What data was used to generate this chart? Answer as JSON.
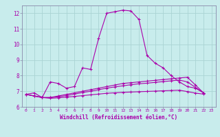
{
  "title": "",
  "xlabel": "Windchill (Refroidissement éolien,°C)",
  "ylabel": "",
  "background_color": "#c8ecec",
  "grid_color": "#aad4d4",
  "line_color": "#aa00aa",
  "spine_color": "#8888aa",
  "xlim_min": -0.5,
  "xlim_max": 23.5,
  "ylim_min": 6.0,
  "ylim_max": 12.5,
  "xticks": [
    0,
    1,
    2,
    3,
    4,
    5,
    6,
    7,
    8,
    9,
    10,
    11,
    12,
    13,
    14,
    15,
    16,
    17,
    18,
    19,
    20,
    21,
    22,
    23
  ],
  "yticks": [
    6,
    7,
    8,
    9,
    10,
    11,
    12
  ],
  "series": [
    [
      6.8,
      6.9,
      6.6,
      7.6,
      7.5,
      7.2,
      7.3,
      8.5,
      8.4,
      10.4,
      12.0,
      12.1,
      12.2,
      12.15,
      11.6,
      9.3,
      8.8,
      8.5,
      8.0,
      7.6,
      7.3,
      7.2,
      6.9
    ],
    [
      6.8,
      6.7,
      6.6,
      6.6,
      6.7,
      6.8,
      6.9,
      7.0,
      7.1,
      7.2,
      7.3,
      7.4,
      7.5,
      7.55,
      7.6,
      7.65,
      7.7,
      7.75,
      7.8,
      7.85,
      7.9,
      7.4,
      6.9
    ],
    [
      6.8,
      6.7,
      6.6,
      6.6,
      6.65,
      6.72,
      6.82,
      6.92,
      7.0,
      7.1,
      7.2,
      7.28,
      7.35,
      7.42,
      7.48,
      7.52,
      7.57,
      7.62,
      7.67,
      7.72,
      7.6,
      7.25,
      6.9
    ],
    [
      6.8,
      6.7,
      6.6,
      6.55,
      6.58,
      6.62,
      6.67,
      6.72,
      6.77,
      6.82,
      6.87,
      6.9,
      6.93,
      6.95,
      6.97,
      6.99,
      7.01,
      7.03,
      7.05,
      7.07,
      6.98,
      6.88,
      6.82
    ]
  ]
}
